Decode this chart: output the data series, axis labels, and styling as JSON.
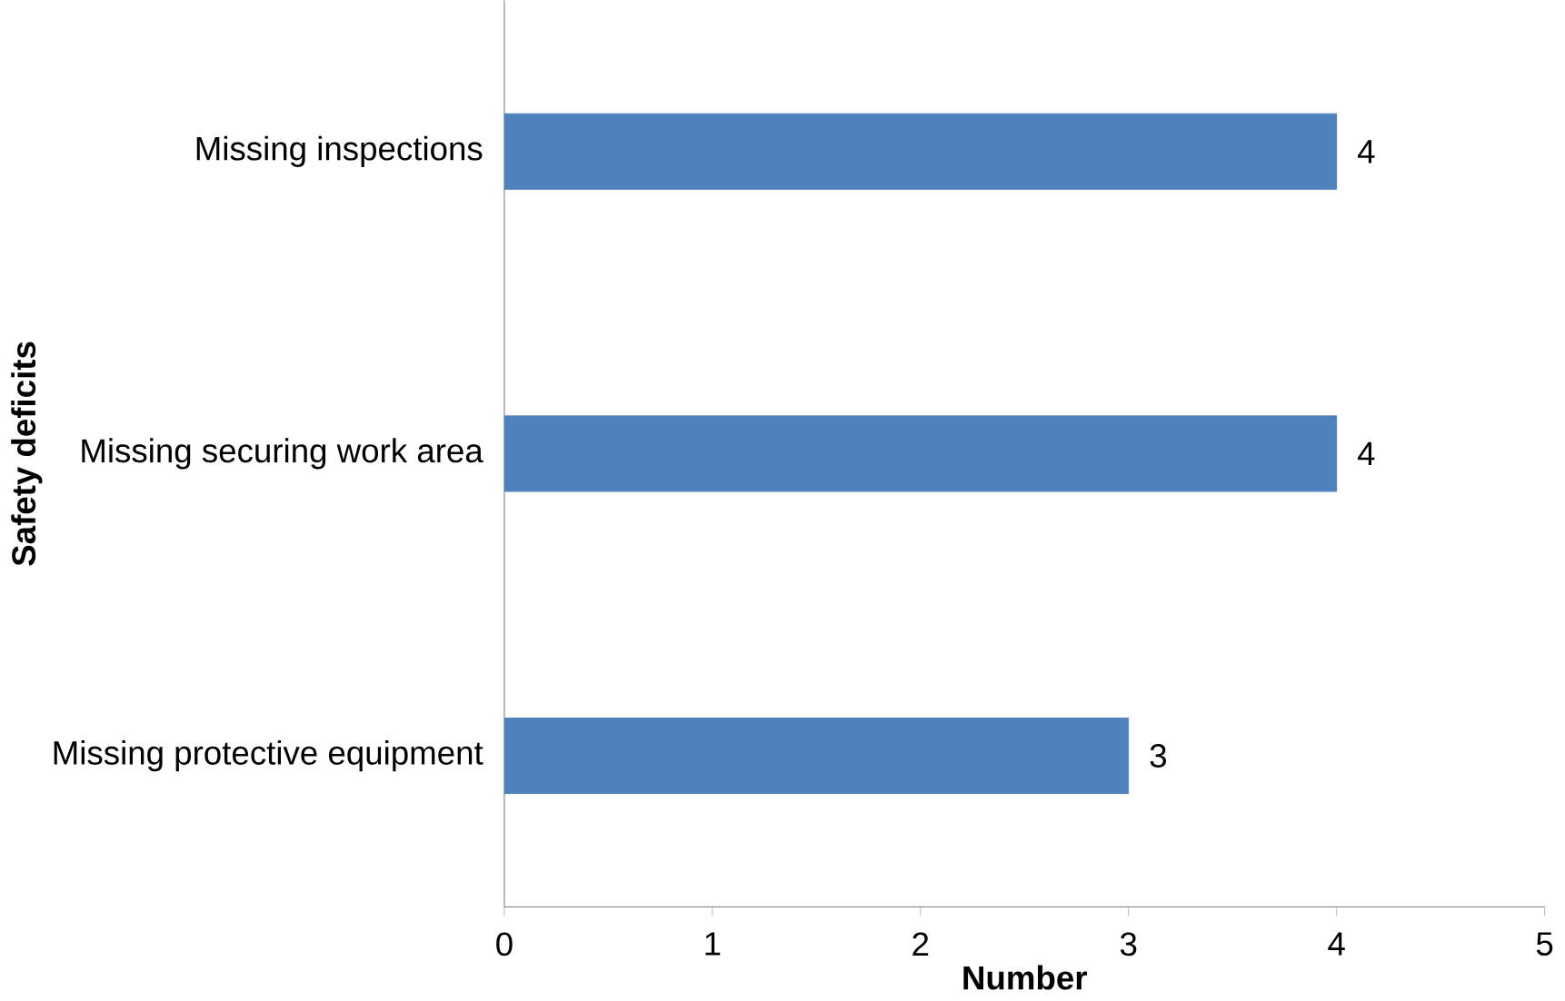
{
  "chart_data": {
    "type": "bar",
    "orientation": "horizontal",
    "xlabel": "Number",
    "ylabel": "Safety deficits",
    "categories": [
      "Missing inspections",
      "Missing securing work area",
      "Missing protective equipment"
    ],
    "values": [
      4,
      4,
      3
    ],
    "color": "#4f81bd",
    "xlim": [
      0,
      5
    ],
    "xticks": [
      0,
      1,
      2,
      3,
      4,
      5
    ],
    "data_labels": true,
    "grid": false
  }
}
